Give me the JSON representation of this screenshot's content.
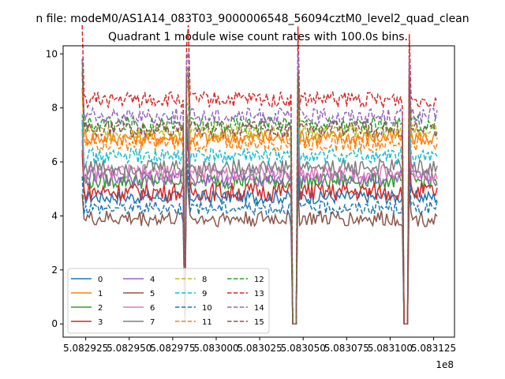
{
  "chart_data": {
    "type": "line",
    "suptitle": "n file: modeM0/AS1A14_083T03_9000006548_56094cztM0_level2_quad_clean",
    "title": "Quadrant 1 module wise count rates with 100.0s bins.",
    "xlabel": "",
    "ylabel": "",
    "x_offset_label": "1e8",
    "xlim": [
      5.082912,
      5.083137
    ],
    "ylim": [
      -0.49,
      10.3
    ],
    "x_ticks": [
      5.082925,
      5.08295,
      5.082975,
      5.083,
      5.083025,
      5.08305,
      5.083075,
      5.0831,
      5.083125
    ],
    "x_tick_labels": [
      "5.082925",
      "5.082950",
      "5.082975",
      "5.083000",
      "5.083025",
      "5.083050",
      "5.083075",
      "5.083100",
      "5.083125"
    ],
    "y_ticks": [
      0,
      2,
      4,
      6,
      8,
      10
    ],
    "y_tick_labels": [
      "0",
      "2",
      "4",
      "6",
      "8",
      "10"
    ],
    "legend_position": "lower-left",
    "legend_columns": 4,
    "x_start": 5.082923,
    "x_step": 1e-06,
    "segments": [
      [
        5.082923,
        5.082981
      ],
      [
        5.082984,
        5.083043
      ],
      [
        5.083047,
        5.083107
      ],
      [
        5.083111,
        5.083127
      ]
    ],
    "dip_points": [
      [
        5.082982,
        0.1
      ],
      [
        5.082983,
        8.0
      ],
      [
        5.083044,
        0.0
      ],
      [
        5.083045,
        0.0
      ],
      [
        5.083046,
        0.0
      ],
      [
        5.083108,
        0.0
      ],
      [
        5.083109,
        0.0
      ],
      [
        5.08311,
        0.0
      ]
    ],
    "series": [
      {
        "name": "0",
        "color": "#1f77b4",
        "dash": "solid",
        "mean": 4.7,
        "noise": 0.25
      },
      {
        "name": "1",
        "color": "#ff7f0e",
        "dash": "solid",
        "mean": 6.9,
        "noise": 0.3
      },
      {
        "name": "2",
        "color": "#2ca02c",
        "dash": "solid",
        "mean": 5.3,
        "noise": 0.3
      },
      {
        "name": "3",
        "color": "#d62728",
        "dash": "solid",
        "mean": 4.9,
        "noise": 0.35
      },
      {
        "name": "4",
        "color": "#9467bd",
        "dash": "solid",
        "mean": 5.4,
        "noise": 0.3
      },
      {
        "name": "5",
        "color": "#8c564b",
        "dash": "solid",
        "mean": 3.9,
        "noise": 0.3
      },
      {
        "name": "6",
        "color": "#e377c2",
        "dash": "solid",
        "mean": 5.6,
        "noise": 0.3
      },
      {
        "name": "7",
        "color": "#7f7f7f",
        "dash": "solid",
        "mean": 5.8,
        "noise": 0.3
      },
      {
        "name": "8",
        "color": "#bcbd22",
        "dash": "dashed",
        "mean": 7.1,
        "noise": 0.3
      },
      {
        "name": "9",
        "color": "#17becf",
        "dash": "dashed",
        "mean": 6.2,
        "noise": 0.3
      },
      {
        "name": "10",
        "color": "#1f77b4",
        "dash": "dashed",
        "mean": 4.3,
        "noise": 0.25
      },
      {
        "name": "11",
        "color": "#ff7f0e",
        "dash": "dashed",
        "mean": 6.7,
        "noise": 0.3
      },
      {
        "name": "12",
        "color": "#2ca02c",
        "dash": "dashed",
        "mean": 7.4,
        "noise": 0.3
      },
      {
        "name": "13",
        "color": "#d62728",
        "dash": "dashed",
        "mean": 8.3,
        "noise": 0.3
      },
      {
        "name": "14",
        "color": "#9467bd",
        "dash": "dashed",
        "mean": 7.7,
        "noise": 0.3
      },
      {
        "name": "15",
        "color": "#8c564b",
        "dash": "dashed",
        "mean": 7.2,
        "noise": 0.3
      }
    ]
  }
}
